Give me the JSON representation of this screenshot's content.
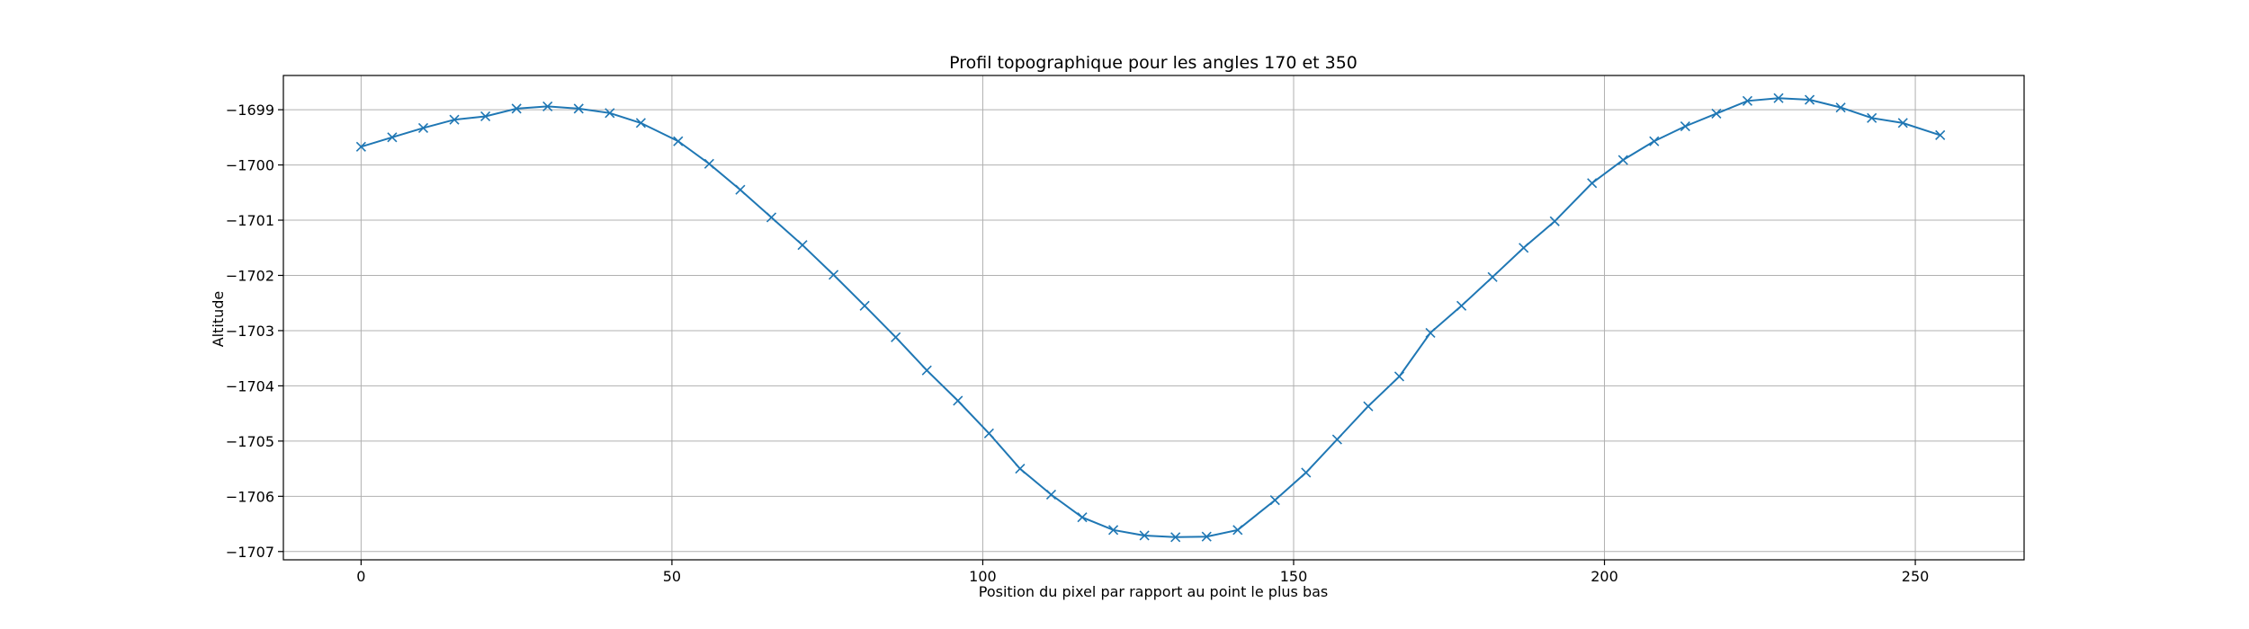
{
  "chart_data": {
    "type": "line",
    "title": "Profil topographique pour les angles 170 et 350",
    "xlabel": "Position du pixel par rapport au point le plus bas",
    "ylabel": "Altitude",
    "xlim": [
      -12.5,
      267.5
    ],
    "ylim": [
      -1707.15,
      -1698.38
    ],
    "xticks": [
      0,
      50,
      100,
      150,
      200,
      250
    ],
    "yticks": [
      -1707,
      -1706,
      -1705,
      -1704,
      -1703,
      -1702,
      -1701,
      -1700,
      -1699
    ],
    "grid": true,
    "color": "#1f77b4",
    "marker": "x",
    "series": [
      {
        "x": [
          0,
          5,
          10,
          15,
          20,
          25,
          30,
          35,
          40,
          45,
          51,
          56,
          61,
          66,
          71,
          76,
          81,
          86,
          91,
          96,
          101,
          106,
          111,
          116,
          121,
          126,
          131,
          136,
          141,
          147,
          152,
          157,
          162,
          167,
          172,
          177,
          182,
          187,
          192,
          198,
          203,
          208,
          213,
          218,
          223,
          228,
          233,
          238,
          243,
          248,
          254
        ],
        "y": [
          -1699.67,
          -1699.5,
          -1699.33,
          -1699.18,
          -1699.12,
          -1698.98,
          -1698.94,
          -1698.98,
          -1699.06,
          -1699.24,
          -1699.57,
          -1699.98,
          -1700.45,
          -1700.95,
          -1701.45,
          -1701.99,
          -1702.55,
          -1703.12,
          -1703.72,
          -1704.27,
          -1704.86,
          -1705.5,
          -1705.97,
          -1706.38,
          -1706.61,
          -1706.71,
          -1706.74,
          -1706.73,
          -1706.61,
          -1706.07,
          -1705.57,
          -1704.97,
          -1704.37,
          -1703.83,
          -1703.04,
          -1702.55,
          -1702.03,
          -1701.5,
          -1701.02,
          -1700.33,
          -1699.91,
          -1699.57,
          -1699.3,
          -1699.07,
          -1698.84,
          -1698.79,
          -1698.82,
          -1698.96,
          -1699.15,
          -1699.24,
          -1699.46
        ]
      }
    ]
  }
}
